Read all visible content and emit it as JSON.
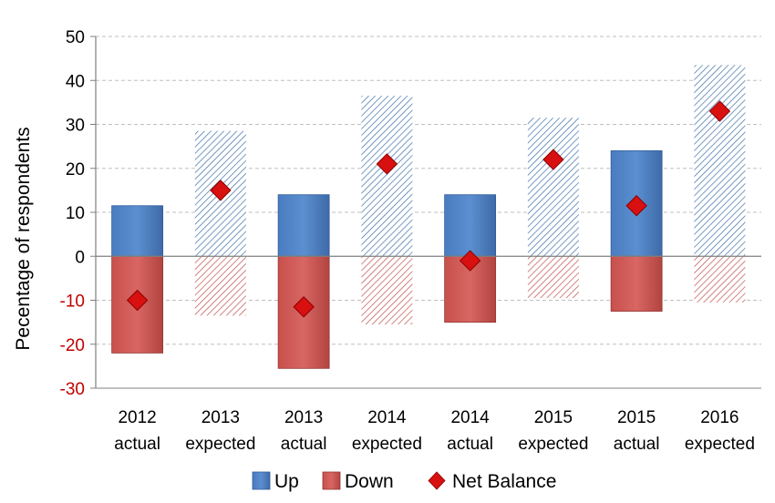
{
  "chart_data": {
    "type": "bar",
    "title": "",
    "xlabel": "",
    "ylabel": "Pecentage of respondents",
    "ylim": [
      -30,
      50
    ],
    "yticks": [
      50,
      40,
      30,
      20,
      10,
      0,
      -10,
      -20,
      -30
    ],
    "grid": true,
    "legend_position": "bottom",
    "categories": [
      {
        "year": "2012",
        "kind": "actual"
      },
      {
        "year": "2013",
        "kind": "expected"
      },
      {
        "year": "2013",
        "kind": "actual"
      },
      {
        "year": "2014",
        "kind": "expected"
      },
      {
        "year": "2014",
        "kind": "actual"
      },
      {
        "year": "2015",
        "kind": "expected"
      },
      {
        "year": "2015",
        "kind": "actual"
      },
      {
        "year": "2016",
        "kind": "expected"
      }
    ],
    "series": [
      {
        "name": "Up",
        "values": [
          11.5,
          28.5,
          14,
          36.5,
          14,
          31.5,
          24,
          43.5
        ]
      },
      {
        "name": "Down",
        "values": [
          -22,
          -13.5,
          -25.5,
          -15.5,
          -15,
          -9.5,
          -12.5,
          -10.5
        ]
      },
      {
        "name": "Net Balance",
        "values": [
          -10,
          15,
          -11.5,
          21,
          -1,
          22,
          11.5,
          33
        ]
      }
    ],
    "colors": {
      "up": "#4f81bd",
      "up_dark": "#2e5c99",
      "down": "#c0504d",
      "down_dark": "#943634",
      "net": "#d81010",
      "net_dark": "#8b0000",
      "negative_tick": "#c00000",
      "grid": "#bfbfbf"
    }
  }
}
